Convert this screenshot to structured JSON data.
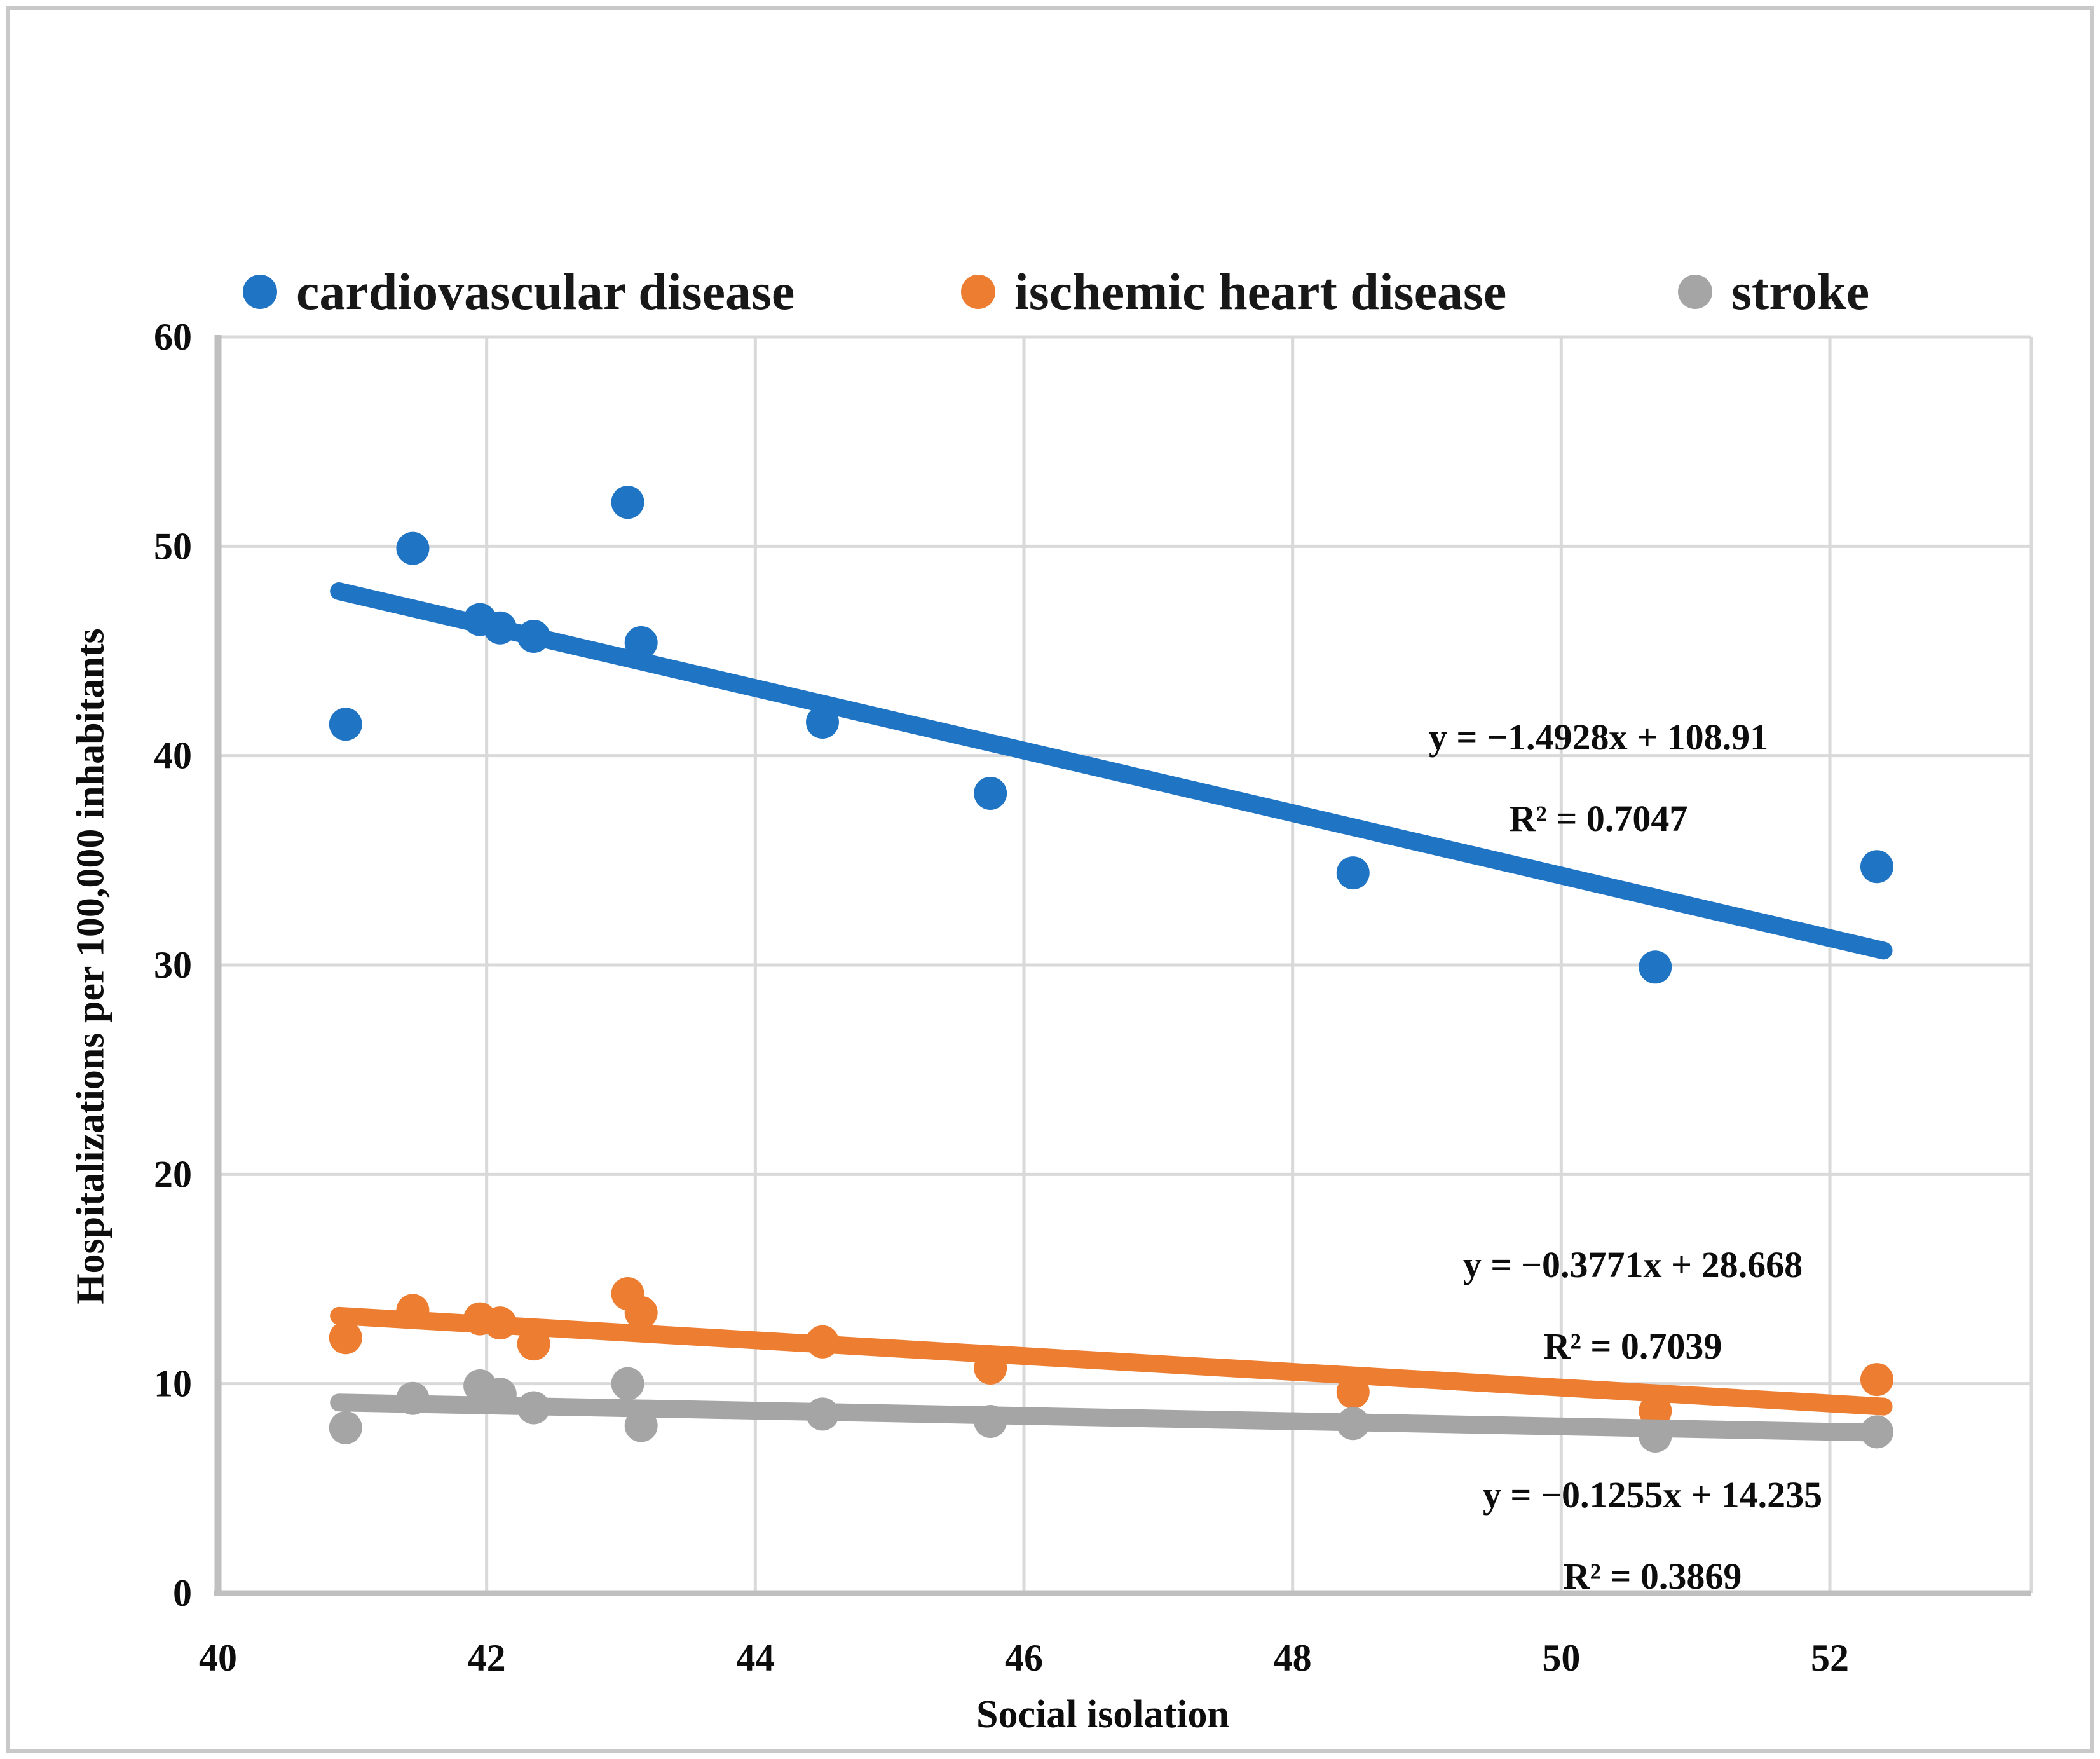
{
  "figure": {
    "legend": {
      "items": [
        {
          "id": "cardiovascular",
          "label": "cardiovascular disease",
          "color": "#2074C4"
        },
        {
          "id": "ischemic",
          "label": "ischemic heart disease",
          "color": "#ED7D31"
        },
        {
          "id": "stroke",
          "label": "stroke",
          "color": "#A5A5A5"
        }
      ]
    },
    "equations": [
      {
        "series": "cardiovascular disease",
        "line1": "y = −1.4928x + 108.91",
        "line2": "R² = 0.7047"
      },
      {
        "series": "ischemic heart disease",
        "line1": "y = −0.3771x + 28.668",
        "line2": "R² = 0.7039"
      },
      {
        "series": "stroke",
        "line1": "y = −0.1255x + 14.235",
        "line2": "R² = 0.3869"
      }
    ],
    "colors": {
      "gridline": "#D9D9D9",
      "axis_line": "#BFBFBF",
      "text": "#0d0d0d"
    }
  },
  "chart_data": {
    "type": "scatter",
    "title": "",
    "xlabel": "Social isolation",
    "ylabel": "Hospitalizations per 100,000 inhabitants",
    "xlim": [
      40,
      53.5
    ],
    "ylim": [
      0,
      60
    ],
    "xticks": [
      40,
      42,
      44,
      46,
      48,
      50,
      52
    ],
    "yticks": [
      0,
      10,
      20,
      30,
      40,
      50,
      60
    ],
    "grid": true,
    "legend_position": "top",
    "series": [
      {
        "name": "cardiovascular disease",
        "color": "#2074C4",
        "points": [
          [
            40.95,
            41.5
          ],
          [
            41.45,
            49.9
          ],
          [
            41.95,
            46.5
          ],
          [
            42.1,
            46.1
          ],
          [
            42.35,
            45.7
          ],
          [
            43.05,
            52.1
          ],
          [
            43.15,
            45.4
          ],
          [
            44.5,
            41.6
          ],
          [
            45.75,
            38.2
          ],
          [
            48.45,
            34.4
          ],
          [
            50.7,
            29.9
          ],
          [
            52.35,
            34.7
          ]
        ],
        "trendline": {
          "slope": -1.4928,
          "intercept": 108.91,
          "r2": 0.7047,
          "x_start": 40.9,
          "x_end": 52.4
        }
      },
      {
        "name": "ischemic heart disease",
        "color": "#ED7D31",
        "points": [
          [
            40.95,
            12.2
          ],
          [
            41.45,
            13.5
          ],
          [
            41.95,
            13.1
          ],
          [
            42.1,
            12.9
          ],
          [
            42.35,
            11.9
          ],
          [
            43.05,
            14.3
          ],
          [
            43.15,
            13.4
          ],
          [
            44.5,
            12.0
          ],
          [
            45.75,
            10.75
          ],
          [
            48.45,
            9.6
          ],
          [
            50.7,
            8.7
          ],
          [
            52.35,
            10.2
          ]
        ],
        "trendline": {
          "slope": -0.3771,
          "intercept": 28.668,
          "r2": 0.7039,
          "x_start": 40.9,
          "x_end": 52.4
        }
      },
      {
        "name": "stroke",
        "color": "#A5A5A5",
        "points": [
          [
            40.95,
            7.9
          ],
          [
            41.45,
            9.3
          ],
          [
            41.95,
            9.9
          ],
          [
            42.1,
            9.5
          ],
          [
            42.35,
            8.85
          ],
          [
            43.05,
            10.0
          ],
          [
            43.15,
            8.0
          ],
          [
            44.5,
            8.55
          ],
          [
            45.75,
            8.2
          ],
          [
            48.45,
            8.1
          ],
          [
            50.7,
            7.5
          ],
          [
            52.35,
            7.7
          ]
        ],
        "trendline": {
          "slope": -0.1255,
          "intercept": 14.235,
          "r2": 0.3869,
          "x_start": 40.9,
          "x_end": 52.4
        }
      }
    ]
  }
}
